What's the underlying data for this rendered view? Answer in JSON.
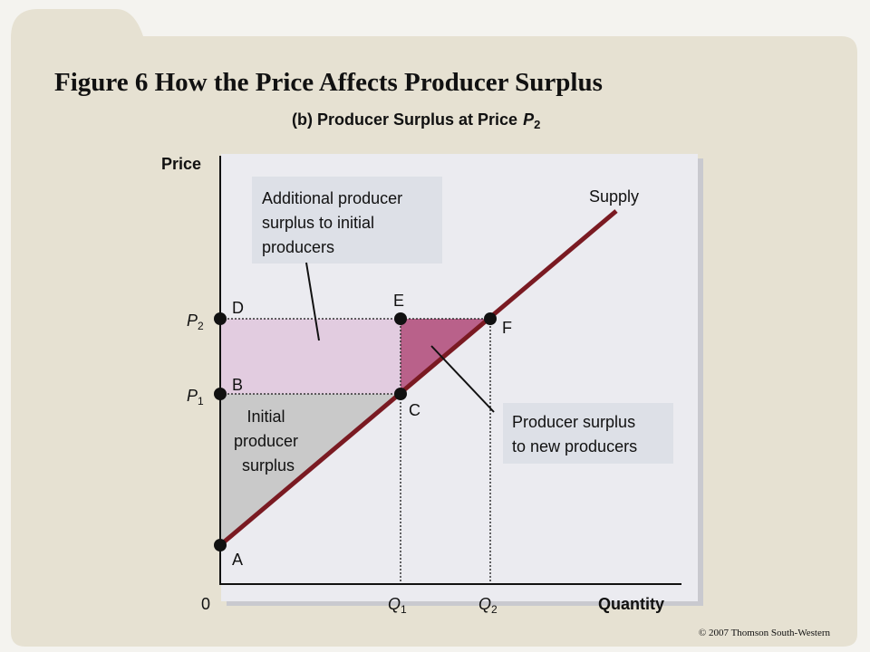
{
  "header": {
    "title": "Figure 6 How the Price Affects Producer Surplus",
    "subtitle": {
      "text": "(b) Producer Surplus at Price",
      "symbol": "P",
      "sub": "2"
    }
  },
  "diagram": {
    "y_axis_label": "Price",
    "x_axis_label": "Quantity",
    "origin": "0",
    "price_labels": [
      {
        "symbol": "P",
        "sub": "2"
      },
      {
        "symbol": "P",
        "sub": "1"
      }
    ],
    "quantity_labels": [
      {
        "symbol": "Q",
        "sub": "1"
      },
      {
        "symbol": "Q",
        "sub": "2"
      }
    ],
    "curve_label": "Supply",
    "points": [
      "A",
      "B",
      "C",
      "D",
      "E",
      "F"
    ],
    "annotations": {
      "additional": [
        "Additional producer",
        "surplus to initial",
        "producers"
      ],
      "new_producers": [
        "Producer surplus",
        "to new producers"
      ],
      "initial": [
        "Initial",
        "producer",
        "surplus"
      ]
    }
  },
  "footer": {
    "copyright": "© 2007 Thomson South-Western"
  }
}
